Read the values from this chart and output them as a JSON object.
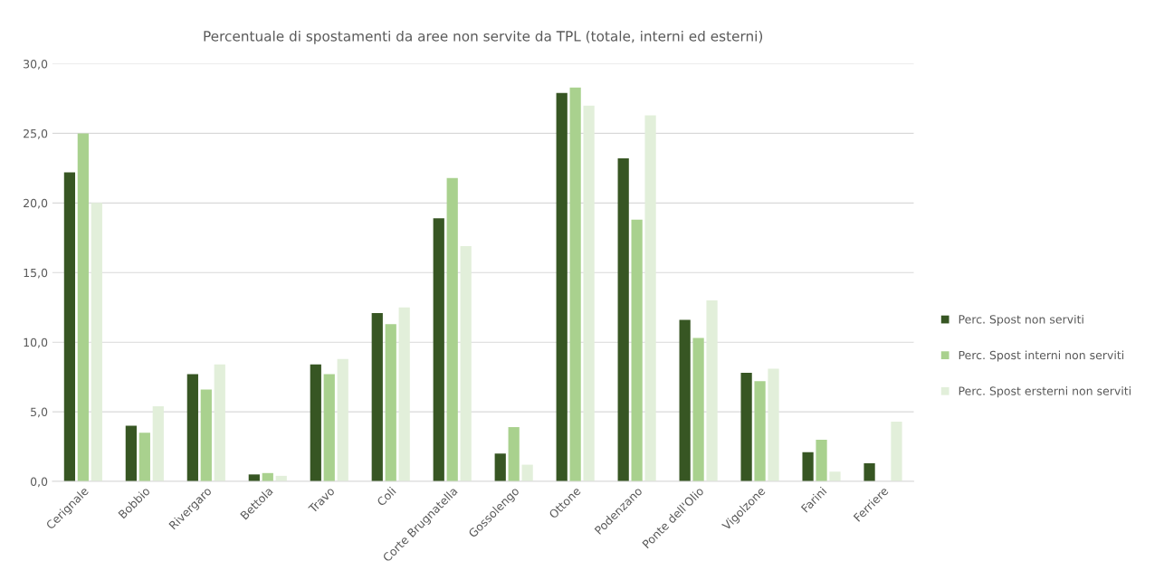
{
  "chart_data": {
    "type": "bar",
    "title": "Percentuale di spostamenti da aree non servite da TPL (totale, interni ed esterni)",
    "categories": [
      "Cerignale",
      "Bobbio",
      "Rivergaro",
      "Bettola",
      "Travo",
      "Coli",
      "Corte Brugnatella",
      "Gossolengo",
      "Ottone",
      "Podenzano",
      "Ponte dell'Olio",
      "Vigolzone",
      "Farini",
      "Ferriere"
    ],
    "series": [
      {
        "name": "Perc. Spost non serviti",
        "color": "#375623",
        "values": [
          22.2,
          4.0,
          7.7,
          0.5,
          8.4,
          12.1,
          18.9,
          2.0,
          27.9,
          23.2,
          11.6,
          7.8,
          2.1,
          1.3
        ]
      },
      {
        "name": "Perc. Spost interni non serviti",
        "color": "#a9d18e",
        "values": [
          25.0,
          3.5,
          6.6,
          0.6,
          7.7,
          11.3,
          21.8,
          3.9,
          28.3,
          18.8,
          10.3,
          7.2,
          3.0,
          null
        ]
      },
      {
        "name": "Perc. Spost ersterni non serviti",
        "color": "#e2efda",
        "values": [
          20.0,
          5.4,
          8.4,
          0.4,
          8.8,
          12.5,
          16.9,
          1.2,
          27.0,
          26.3,
          13.0,
          8.1,
          0.7,
          4.3
        ]
      }
    ],
    "ylim": [
      0,
      30
    ],
    "yticks": [
      {
        "value": 0,
        "label": "0,0"
      },
      {
        "value": 5,
        "label": "5,0"
      },
      {
        "value": 10,
        "label": "10,0"
      },
      {
        "value": 15,
        "label": "15,0"
      },
      {
        "value": 20,
        "label": "20,0"
      },
      {
        "value": 25,
        "label": "25,0"
      },
      {
        "value": 30,
        "label": "30,0"
      }
    ],
    "grid": "y",
    "legend": "right"
  }
}
